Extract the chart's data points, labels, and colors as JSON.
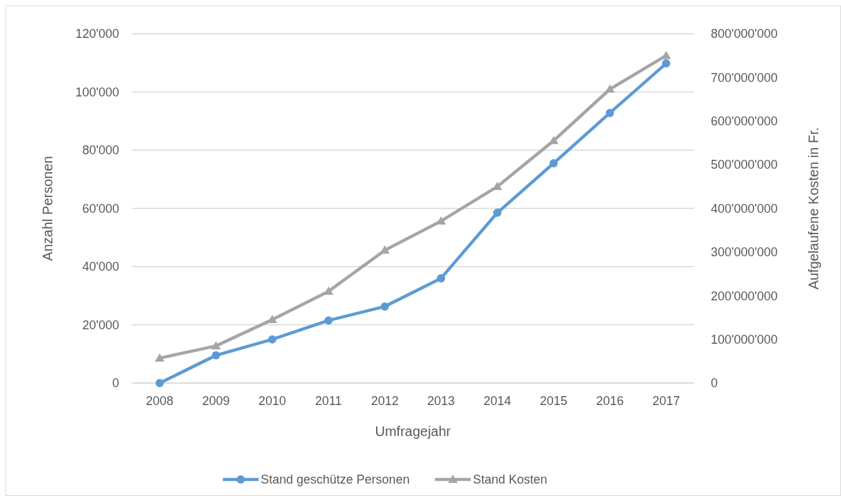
{
  "chart_data": {
    "type": "line",
    "xlabel": "Umfragejahr",
    "ylabel": "Anzahl Personen",
    "y2label": "Aufgelaufene Kosten in Fr.",
    "categories": [
      "2008",
      "2009",
      "2010",
      "2011",
      "2012",
      "2013",
      "2014",
      "2015",
      "2016",
      "2017"
    ],
    "series": [
      {
        "name": "Stand geschütze Personen",
        "color": "#5b9bd5",
        "marker": "circle",
        "values": [
          0,
          9500,
          15000,
          21500,
          26300,
          36000,
          58500,
          75500,
          92800,
          109800
        ]
      },
      {
        "name": "Stand Kosten",
        "color": "#a5a5a5",
        "marker": "triangle",
        "axis": "y2",
        "values": [
          57000000,
          85000000,
          145000000,
          210000000,
          304000000,
          371000000,
          450000000,
          555000000,
          673000000,
          750000000
        ]
      }
    ],
    "ylim": [
      0,
      120000
    ],
    "yticks": [
      0,
      {
        "value": 20000,
        "label": "20'000"
      },
      {
        "value": 40000,
        "label": "40'000"
      },
      {
        "value": 60000,
        "label": "60'000"
      },
      {
        "value": 80000,
        "label": "80'000"
      },
      {
        "value": 100000,
        "label": "100'000"
      },
      {
        "value": 120000,
        "label": "120'000"
      }
    ],
    "y2lim": [
      0,
      800000000
    ],
    "y2ticks": [
      0,
      {
        "value": 100000000,
        "label": "100'000'000"
      },
      {
        "value": 200000000,
        "label": "200'000'000"
      },
      {
        "value": 300000000,
        "label": "300'000'000"
      },
      {
        "value": 400000000,
        "label": "400'000'000"
      },
      {
        "value": 500000000,
        "label": "500'000'000"
      },
      {
        "value": 600000000,
        "label": "600'000'000"
      },
      {
        "value": 700000000,
        "label": "700'000'000"
      },
      {
        "value": 800000000,
        "label": "800'000'000"
      }
    ],
    "grid": "y",
    "legend": "bottom",
    "line_style": "solid"
  }
}
